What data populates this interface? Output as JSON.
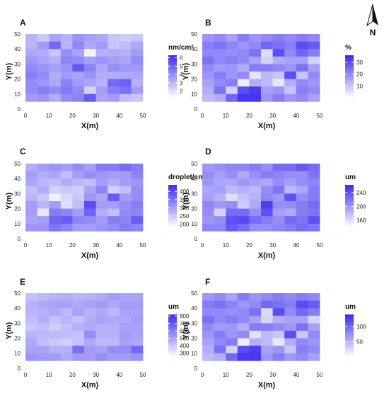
{
  "figure": {
    "north_arrow": {
      "label": "N",
      "icon": "north-arrow-icon"
    },
    "color_low": "#ffffff",
    "color_high": "#3a2bf0",
    "tile_color_mid": "#a9a0f5"
  },
  "chart_data": [
    {
      "type": "heatmap",
      "panel": "A",
      "xlabel": "X(m)",
      "ylabel": "Y(m)",
      "xlim": [
        0,
        50
      ],
      "ylim": [
        0,
        50
      ],
      "xticks": [
        0,
        10,
        20,
        30,
        40,
        50
      ],
      "yticks": [
        0,
        10,
        20,
        30,
        40,
        50
      ],
      "grid_x": [
        2.5,
        7.5,
        12.5,
        17.5,
        22.5,
        27.5,
        32.5,
        37.5,
        42.5,
        47.5
      ],
      "grid_y": [
        47.5,
        42.5,
        37.5,
        32.5,
        27.5,
        22.5,
        17.5,
        12.5,
        7.5
      ],
      "legend_title": "nm/cm²",
      "legend_ticks": [
        2,
        3,
        4,
        5,
        6
      ],
      "vmin": 1.2,
      "vmax": 6.3,
      "values": [
        [
          3.0,
          3.0,
          3.3,
          3.7,
          4.0,
          4.3,
          4.0,
          4.0,
          3.6
        ],
        [
          2.5,
          3.6,
          3.2,
          3.4,
          3.8,
          4.0,
          3.7,
          4.3,
          3.8
        ],
        [
          3.4,
          4.8,
          2.6,
          3.1,
          3.5,
          3.2,
          3.3,
          4.0,
          3.2
        ],
        [
          3.1,
          3.0,
          3.9,
          4.1,
          3.8,
          3.6,
          4.2,
          4.4,
          4.0
        ],
        [
          3.8,
          4.1,
          3.4,
          4.0,
          5.2,
          3.4,
          3.6,
          4.0,
          4.2
        ],
        [
          3.5,
          3.3,
          1.5,
          3.5,
          4.2,
          3.8,
          3.4,
          2.3,
          5.2
        ],
        [
          3.3,
          3.6,
          3.1,
          3.8,
          3.3,
          3.2,
          3.0,
          3.5,
          3.4
        ],
        [
          2.6,
          2.6,
          3.2,
          3.5,
          3.9,
          3.2,
          4.8,
          4.3,
          3.6
        ],
        [
          2.4,
          2.8,
          3.1,
          3.4,
          3.7,
          3.3,
          5.0,
          4.6,
          2.8
        ],
        [
          2.6,
          3.3,
          3.6,
          4.0,
          3.7,
          3.3,
          3.1,
          3.6,
          2.6
        ]
      ]
    },
    {
      "type": "heatmap",
      "panel": "B",
      "xlabel": "X(m)",
      "ylabel": "Y(m)",
      "xlim": [
        0,
        50
      ],
      "ylim": [
        0,
        50
      ],
      "xticks": [
        0,
        10,
        20,
        30,
        40,
        50
      ],
      "yticks": [
        0,
        10,
        20,
        30,
        40,
        50
      ],
      "grid_x": [
        2.5,
        7.5,
        12.5,
        17.5,
        22.5,
        27.5,
        32.5,
        37.5,
        42.5,
        47.5
      ],
      "grid_y": [
        47.5,
        42.5,
        37.5,
        32.5,
        27.5,
        22.5,
        17.5,
        12.5,
        7.5
      ],
      "legend_title": "%",
      "legend_ticks": [
        10,
        20,
        30
      ],
      "vmin": 0,
      "vmax": 36,
      "values": [
        [
          18,
          22,
          20,
          24,
          20,
          18,
          16,
          14,
          12
        ],
        [
          20,
          24,
          20,
          20,
          17,
          22,
          20,
          24,
          14
        ],
        [
          16,
          21,
          19,
          22,
          18,
          18,
          22,
          8,
          26
        ],
        [
          22,
          18,
          20,
          20,
          14,
          20,
          3,
          30,
          34
        ],
        [
          18,
          20,
          24,
          16,
          22,
          5,
          14,
          33,
          34
        ],
        [
          20,
          26,
          6,
          8,
          22,
          12,
          12,
          16,
          18
        ],
        [
          22,
          24,
          30,
          14,
          20,
          10,
          4,
          18,
          22
        ],
        [
          20,
          22,
          20,
          16,
          18,
          30,
          14,
          10,
          18
        ],
        [
          22,
          30,
          26,
          16,
          24,
          10,
          20,
          22,
          20
        ],
        [
          20,
          28,
          22,
          8,
          16,
          20,
          18,
          20,
          16
        ]
      ]
    },
    {
      "type": "heatmap",
      "panel": "C",
      "xlabel": "X(m)",
      "ylabel": "Y(m)",
      "xlim": [
        0,
        50
      ],
      "ylim": [
        0,
        50
      ],
      "xticks": [
        0,
        10,
        20,
        30,
        40,
        50
      ],
      "yticks": [
        0,
        10,
        20,
        30,
        40,
        50
      ],
      "grid_x": [
        2.5,
        7.5,
        12.5,
        17.5,
        22.5,
        27.5,
        32.5,
        37.5,
        42.5,
        47.5
      ],
      "grid_y": [
        47.5,
        42.5,
        37.5,
        32.5,
        27.5,
        22.5,
        17.5,
        12.5,
        7.5
      ],
      "legend_title": "droplet/cm²",
      "legend_ticks": [
        200,
        250,
        300,
        350,
        400
      ],
      "vmin": 180,
      "vmax": 440,
      "values": [
        [
          280,
          300,
          290,
          260,
          270,
          300,
          300,
          290,
          310
        ],
        [
          300,
          280,
          270,
          280,
          250,
          270,
          210,
          300,
          310
        ],
        [
          310,
          290,
          260,
          240,
          200,
          300,
          340,
          370,
          350
        ],
        [
          300,
          260,
          280,
          250,
          230,
          220,
          330,
          380,
          330
        ],
        [
          320,
          300,
          270,
          240,
          250,
          260,
          300,
          330,
          300
        ],
        [
          300,
          320,
          260,
          290,
          310,
          400,
          370,
          320,
          300
        ],
        [
          340,
          310,
          300,
          330,
          290,
          300,
          280,
          300,
          310
        ],
        [
          340,
          300,
          280,
          240,
          380,
          300,
          260,
          340,
          320
        ],
        [
          360,
          300,
          300,
          260,
          300,
          320,
          320,
          330,
          340
        ],
        [
          340,
          330,
          310,
          320,
          320,
          340,
          330,
          380,
          330
        ]
      ]
    },
    {
      "type": "heatmap",
      "panel": "D",
      "xlabel": "X(m)",
      "ylabel": "Y(m)",
      "xlim": [
        0,
        50
      ],
      "ylim": [
        0,
        50
      ],
      "xticks": [
        0,
        10,
        20,
        30,
        40,
        50
      ],
      "yticks": [
        0,
        10,
        20,
        30,
        40,
        50
      ],
      "grid_x": [
        2.5,
        7.5,
        12.5,
        17.5,
        22.5,
        27.5,
        32.5,
        37.5,
        42.5,
        47.5
      ],
      "grid_y": [
        47.5,
        42.5,
        37.5,
        32.5,
        27.5,
        22.5,
        17.5,
        12.5,
        7.5
      ],
      "legend_title": "um",
      "legend_ticks": [
        160,
        200,
        240
      ],
      "vmin": 140,
      "vmax": 262,
      "values": [
        [
          200,
          205,
          200,
          190,
          195,
          210,
          205,
          200,
          210
        ],
        [
          205,
          195,
          190,
          195,
          185,
          200,
          165,
          205,
          210
        ],
        [
          210,
          205,
          190,
          180,
          160,
          205,
          225,
          240,
          235
        ],
        [
          210,
          190,
          200,
          185,
          175,
          170,
          225,
          245,
          225
        ],
        [
          215,
          205,
          195,
          180,
          185,
          190,
          205,
          225,
          205
        ],
        [
          205,
          215,
          190,
          205,
          210,
          250,
          240,
          215,
          205
        ],
        [
          225,
          210,
          205,
          220,
          200,
          205,
          195,
          205,
          210
        ],
        [
          225,
          205,
          195,
          180,
          240,
          205,
          190,
          225,
          215
        ],
        [
          235,
          205,
          205,
          190,
          205,
          215,
          215,
          220,
          225
        ],
        [
          225,
          220,
          210,
          215,
          215,
          225,
          220,
          240,
          220
        ]
      ]
    },
    {
      "type": "heatmap",
      "panel": "E",
      "xlabel": "X(m)",
      "ylabel": "Y(m)",
      "xlim": [
        0,
        50
      ],
      "ylim": [
        0,
        50
      ],
      "xticks": [
        0,
        10,
        20,
        30,
        40,
        50
      ],
      "yticks": [
        0,
        10,
        20,
        30,
        40,
        50
      ],
      "grid_x": [
        2.5,
        7.5,
        12.5,
        17.5,
        22.5,
        27.5,
        32.5,
        37.5,
        42.5,
        47.5
      ],
      "grid_y": [
        47.5,
        42.5,
        37.5,
        32.5,
        27.5,
        22.5,
        17.5,
        12.5,
        7.5
      ],
      "legend_title": "um",
      "legend_ticks": [
        300,
        400,
        500,
        600,
        700,
        800
      ],
      "vmin": 250,
      "vmax": 820,
      "values": [
        [
          420,
          460,
          450,
          430,
          400,
          450,
          480,
          500,
          540
        ],
        [
          440,
          480,
          460,
          470,
          430,
          440,
          420,
          500,
          520
        ],
        [
          460,
          500,
          480,
          420,
          390,
          440,
          400,
          460,
          520
        ],
        [
          470,
          500,
          440,
          450,
          420,
          430,
          380,
          460,
          480
        ],
        [
          450,
          480,
          500,
          420,
          460,
          420,
          420,
          640,
          520
        ],
        [
          460,
          500,
          460,
          470,
          480,
          560,
          480,
          520,
          520
        ],
        [
          480,
          520,
          480,
          500,
          460,
          460,
          440,
          500,
          560
        ],
        [
          520,
          480,
          440,
          480,
          460,
          460,
          440,
          560,
          520
        ],
        [
          500,
          520,
          500,
          480,
          500,
          520,
          500,
          560,
          520
        ],
        [
          500,
          520,
          500,
          520,
          500,
          500,
          480,
          660,
          540
        ]
      ]
    },
    {
      "type": "heatmap",
      "panel": "F",
      "xlabel": "X(m)",
      "ylabel": "Y(m)",
      "xlim": [
        0,
        50
      ],
      "ylim": [
        0,
        50
      ],
      "xticks": [
        0,
        10,
        20,
        30,
        40,
        50
      ],
      "yticks": [
        0,
        10,
        20,
        30,
        40,
        50
      ],
      "grid_x": [
        2.5,
        7.5,
        12.5,
        17.5,
        22.5,
        27.5,
        32.5,
        37.5,
        42.5,
        47.5
      ],
      "grid_y": [
        47.5,
        42.5,
        37.5,
        32.5,
        27.5,
        22.5,
        17.5,
        12.5,
        7.5
      ],
      "legend_title": "um",
      "legend_ticks": [
        50,
        100
      ],
      "vmin": 0,
      "vmax": 140,
      "values": [
        [
          70,
          86,
          78,
          94,
          78,
          70,
          62,
          54,
          46
        ],
        [
          78,
          94,
          78,
          78,
          66,
          86,
          78,
          94,
          54
        ],
        [
          62,
          82,
          74,
          86,
          70,
          70,
          86,
          30,
          100
        ],
        [
          86,
          70,
          78,
          78,
          54,
          78,
          12,
          118,
          130
        ],
        [
          70,
          78,
          94,
          62,
          86,
          20,
          54,
          128,
          130
        ],
        [
          78,
          100,
          24,
          30,
          86,
          46,
          46,
          62,
          70
        ],
        [
          86,
          94,
          118,
          54,
          78,
          38,
          16,
          70,
          86
        ],
        [
          78,
          86,
          78,
          62,
          70,
          118,
          54,
          38,
          70
        ],
        [
          86,
          118,
          100,
          62,
          94,
          38,
          78,
          86,
          78
        ],
        [
          78,
          108,
          86,
          30,
          62,
          78,
          70,
          78,
          62
        ]
      ]
    }
  ]
}
